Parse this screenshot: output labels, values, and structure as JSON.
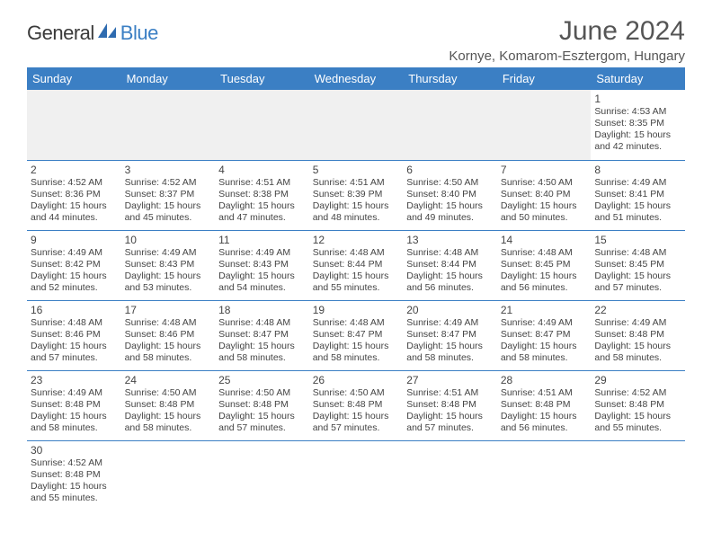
{
  "logo": {
    "text1": "General",
    "text2": "Blue"
  },
  "title": "June 2024",
  "location": "Kornye, Komarom-Esztergom, Hungary",
  "colors": {
    "header_bg": "#3b7fc4",
    "header_text": "#ffffff",
    "body_text": "#444444",
    "title_text": "#555555",
    "rule": "#3b7fc4",
    "empty_bg": "#f0f0f0"
  },
  "weekdays": [
    "Sunday",
    "Monday",
    "Tuesday",
    "Wednesday",
    "Thursday",
    "Friday",
    "Saturday"
  ],
  "weeks": [
    [
      null,
      null,
      null,
      null,
      null,
      null,
      {
        "d": "1",
        "sr": "Sunrise: 4:53 AM",
        "ss": "Sunset: 8:35 PM",
        "dl1": "Daylight: 15 hours",
        "dl2": "and 42 minutes."
      }
    ],
    [
      {
        "d": "2",
        "sr": "Sunrise: 4:52 AM",
        "ss": "Sunset: 8:36 PM",
        "dl1": "Daylight: 15 hours",
        "dl2": "and 44 minutes."
      },
      {
        "d": "3",
        "sr": "Sunrise: 4:52 AM",
        "ss": "Sunset: 8:37 PM",
        "dl1": "Daylight: 15 hours",
        "dl2": "and 45 minutes."
      },
      {
        "d": "4",
        "sr": "Sunrise: 4:51 AM",
        "ss": "Sunset: 8:38 PM",
        "dl1": "Daylight: 15 hours",
        "dl2": "and 47 minutes."
      },
      {
        "d": "5",
        "sr": "Sunrise: 4:51 AM",
        "ss": "Sunset: 8:39 PM",
        "dl1": "Daylight: 15 hours",
        "dl2": "and 48 minutes."
      },
      {
        "d": "6",
        "sr": "Sunrise: 4:50 AM",
        "ss": "Sunset: 8:40 PM",
        "dl1": "Daylight: 15 hours",
        "dl2": "and 49 minutes."
      },
      {
        "d": "7",
        "sr": "Sunrise: 4:50 AM",
        "ss": "Sunset: 8:40 PM",
        "dl1": "Daylight: 15 hours",
        "dl2": "and 50 minutes."
      },
      {
        "d": "8",
        "sr": "Sunrise: 4:49 AM",
        "ss": "Sunset: 8:41 PM",
        "dl1": "Daylight: 15 hours",
        "dl2": "and 51 minutes."
      }
    ],
    [
      {
        "d": "9",
        "sr": "Sunrise: 4:49 AM",
        "ss": "Sunset: 8:42 PM",
        "dl1": "Daylight: 15 hours",
        "dl2": "and 52 minutes."
      },
      {
        "d": "10",
        "sr": "Sunrise: 4:49 AM",
        "ss": "Sunset: 8:43 PM",
        "dl1": "Daylight: 15 hours",
        "dl2": "and 53 minutes."
      },
      {
        "d": "11",
        "sr": "Sunrise: 4:49 AM",
        "ss": "Sunset: 8:43 PM",
        "dl1": "Daylight: 15 hours",
        "dl2": "and 54 minutes."
      },
      {
        "d": "12",
        "sr": "Sunrise: 4:48 AM",
        "ss": "Sunset: 8:44 PM",
        "dl1": "Daylight: 15 hours",
        "dl2": "and 55 minutes."
      },
      {
        "d": "13",
        "sr": "Sunrise: 4:48 AM",
        "ss": "Sunset: 8:44 PM",
        "dl1": "Daylight: 15 hours",
        "dl2": "and 56 minutes."
      },
      {
        "d": "14",
        "sr": "Sunrise: 4:48 AM",
        "ss": "Sunset: 8:45 PM",
        "dl1": "Daylight: 15 hours",
        "dl2": "and 56 minutes."
      },
      {
        "d": "15",
        "sr": "Sunrise: 4:48 AM",
        "ss": "Sunset: 8:45 PM",
        "dl1": "Daylight: 15 hours",
        "dl2": "and 57 minutes."
      }
    ],
    [
      {
        "d": "16",
        "sr": "Sunrise: 4:48 AM",
        "ss": "Sunset: 8:46 PM",
        "dl1": "Daylight: 15 hours",
        "dl2": "and 57 minutes."
      },
      {
        "d": "17",
        "sr": "Sunrise: 4:48 AM",
        "ss": "Sunset: 8:46 PM",
        "dl1": "Daylight: 15 hours",
        "dl2": "and 58 minutes."
      },
      {
        "d": "18",
        "sr": "Sunrise: 4:48 AM",
        "ss": "Sunset: 8:47 PM",
        "dl1": "Daylight: 15 hours",
        "dl2": "and 58 minutes."
      },
      {
        "d": "19",
        "sr": "Sunrise: 4:48 AM",
        "ss": "Sunset: 8:47 PM",
        "dl1": "Daylight: 15 hours",
        "dl2": "and 58 minutes."
      },
      {
        "d": "20",
        "sr": "Sunrise: 4:49 AM",
        "ss": "Sunset: 8:47 PM",
        "dl1": "Daylight: 15 hours",
        "dl2": "and 58 minutes."
      },
      {
        "d": "21",
        "sr": "Sunrise: 4:49 AM",
        "ss": "Sunset: 8:47 PM",
        "dl1": "Daylight: 15 hours",
        "dl2": "and 58 minutes."
      },
      {
        "d": "22",
        "sr": "Sunrise: 4:49 AM",
        "ss": "Sunset: 8:48 PM",
        "dl1": "Daylight: 15 hours",
        "dl2": "and 58 minutes."
      }
    ],
    [
      {
        "d": "23",
        "sr": "Sunrise: 4:49 AM",
        "ss": "Sunset: 8:48 PM",
        "dl1": "Daylight: 15 hours",
        "dl2": "and 58 minutes."
      },
      {
        "d": "24",
        "sr": "Sunrise: 4:50 AM",
        "ss": "Sunset: 8:48 PM",
        "dl1": "Daylight: 15 hours",
        "dl2": "and 58 minutes."
      },
      {
        "d": "25",
        "sr": "Sunrise: 4:50 AM",
        "ss": "Sunset: 8:48 PM",
        "dl1": "Daylight: 15 hours",
        "dl2": "and 57 minutes."
      },
      {
        "d": "26",
        "sr": "Sunrise: 4:50 AM",
        "ss": "Sunset: 8:48 PM",
        "dl1": "Daylight: 15 hours",
        "dl2": "and 57 minutes."
      },
      {
        "d": "27",
        "sr": "Sunrise: 4:51 AM",
        "ss": "Sunset: 8:48 PM",
        "dl1": "Daylight: 15 hours",
        "dl2": "and 57 minutes."
      },
      {
        "d": "28",
        "sr": "Sunrise: 4:51 AM",
        "ss": "Sunset: 8:48 PM",
        "dl1": "Daylight: 15 hours",
        "dl2": "and 56 minutes."
      },
      {
        "d": "29",
        "sr": "Sunrise: 4:52 AM",
        "ss": "Sunset: 8:48 PM",
        "dl1": "Daylight: 15 hours",
        "dl2": "and 55 minutes."
      }
    ],
    [
      {
        "d": "30",
        "sr": "Sunrise: 4:52 AM",
        "ss": "Sunset: 8:48 PM",
        "dl1": "Daylight: 15 hours",
        "dl2": "and 55 minutes."
      },
      null,
      null,
      null,
      null,
      null,
      null
    ]
  ]
}
